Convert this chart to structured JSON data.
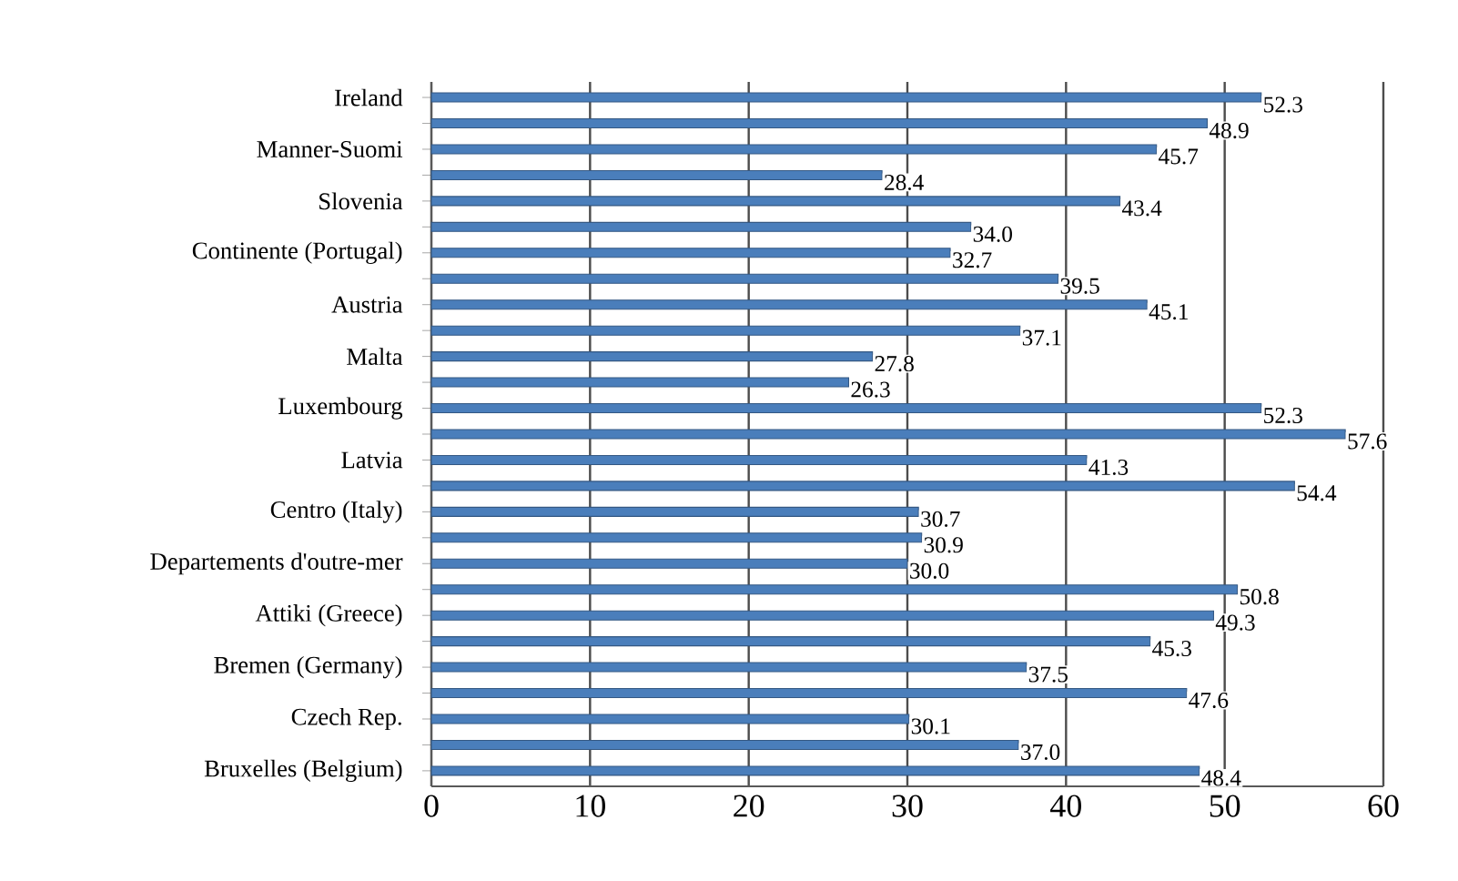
{
  "chart_data": {
    "type": "bar",
    "orientation": "horizontal",
    "categories": [
      "Ireland",
      null,
      "Manner-Suomi",
      null,
      "Slovenia",
      null,
      "Continente (Portugal)",
      null,
      "Austria",
      null,
      "Malta",
      null,
      "Luxembourg",
      null,
      "Latvia",
      null,
      "Centro (Italy)",
      null,
      "Departements d'outre-mer",
      null,
      "Attiki (Greece)",
      null,
      "Bremen (Germany)",
      null,
      "Czech Rep.",
      null,
      "Bruxelles (Belgium)"
    ],
    "values": [
      52.3,
      48.9,
      45.7,
      28.4,
      43.4,
      34.0,
      32.7,
      39.5,
      45.1,
      37.1,
      27.8,
      26.3,
      52.3,
      57.6,
      41.3,
      54.4,
      30.7,
      30.9,
      30.0,
      50.8,
      49.3,
      45.3,
      37.5,
      47.6,
      30.1,
      37.0,
      48.4
    ],
    "value_labels": [
      "52.3",
      "48.9",
      "45.7",
      "28.4",
      "43.4",
      "34.0",
      "32.7",
      "39.5",
      "45.1",
      "37.1",
      "27.8",
      "26.3",
      "52.3",
      "57.6",
      "41.3",
      "54.4",
      "30.7",
      "30.9",
      "30.0",
      "50.8",
      "49.3",
      "45.3",
      "37.5",
      "47.6",
      "30.1",
      "37.0",
      "48.4"
    ],
    "color": "#4a7ebb",
    "xlim": [
      0,
      60
    ],
    "xticks": [
      0,
      10,
      20,
      30,
      40,
      50,
      60
    ],
    "grid": "x"
  }
}
